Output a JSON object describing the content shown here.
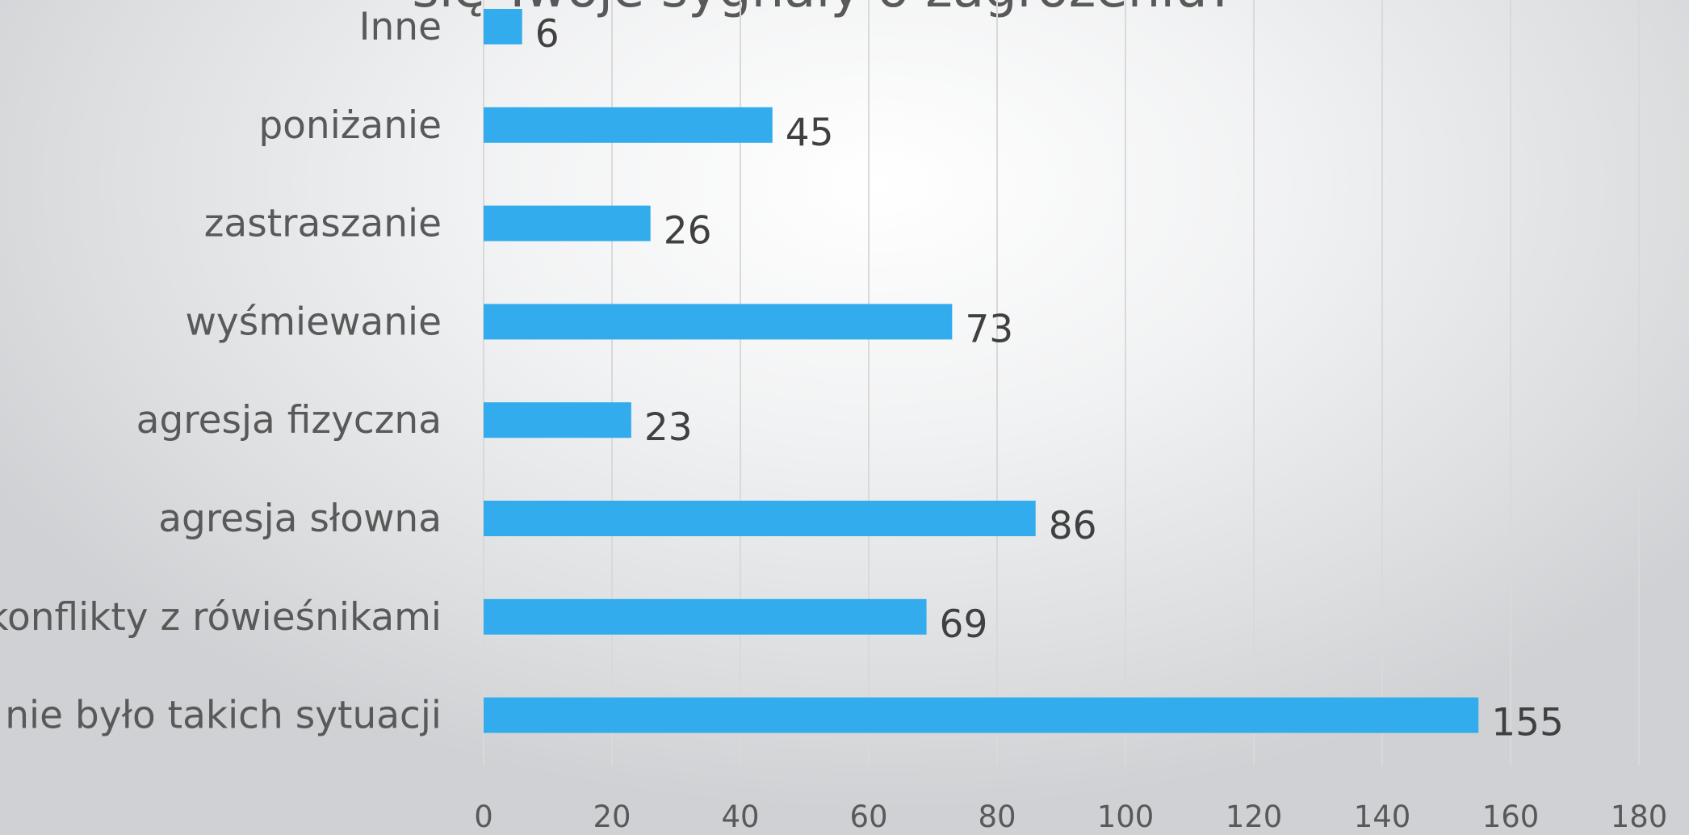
{
  "chart_data": {
    "type": "bar",
    "orientation": "horizontal",
    "title": "się Twoje sygnały o zagrożeniu?",
    "categories": [
      "Inne",
      "poniżanie",
      "zastraszanie",
      "wyśmiewanie",
      "agresja fizyczna",
      "agresja słowna",
      "konflikty z rówieśnikami",
      "nie było takich sytuacji"
    ],
    "values": [
      6,
      45,
      26,
      73,
      23,
      86,
      69,
      155
    ],
    "x_ticks": [
      "0",
      "20",
      "40",
      "60",
      "80",
      "100",
      "120",
      "140",
      "160",
      "180"
    ],
    "xlim": [
      0,
      180
    ],
    "grid": "vertical",
    "legend": "none",
    "data_labels": true,
    "bar_color": "#32ACEC",
    "gridline_color": "#D9D9D9"
  }
}
